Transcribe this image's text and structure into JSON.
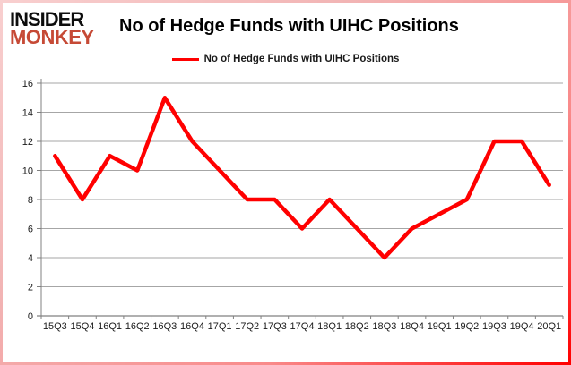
{
  "logo": {
    "line1": "INSIDER",
    "line2": "MONKEY",
    "accent_color": "#c64a36"
  },
  "header": {
    "title": "No of Hedge Funds with UIHC Positions"
  },
  "legend": {
    "label": "No of Hedge Funds with UIHC Positions",
    "marker_color": "#ff0000"
  },
  "chart_data": {
    "type": "line",
    "title": "No of Hedge Funds with UIHC Positions",
    "categories": [
      "15Q3",
      "15Q4",
      "16Q1",
      "16Q2",
      "16Q3",
      "16Q4",
      "17Q1",
      "17Q2",
      "17Q3",
      "17Q4",
      "18Q1",
      "18Q2",
      "18Q3",
      "18Q4",
      "19Q1",
      "19Q2",
      "19Q3",
      "19Q4",
      "20Q1"
    ],
    "series": [
      {
        "name": "No of Hedge Funds with UIHC Positions",
        "color": "#ff0000",
        "values": [
          11,
          8,
          11,
          10,
          15,
          12,
          10,
          8,
          8,
          6,
          8,
          6,
          4,
          6,
          7,
          8,
          12,
          12,
          9
        ]
      }
    ],
    "xlabel": "",
    "ylabel": "",
    "ylim": [
      0,
      16
    ],
    "ytick_step": 2,
    "grid": "horizontal",
    "legend_position": "top",
    "colors": {
      "gridline": "#a6a6a6",
      "axis": "#808080",
      "tick_label": "#1a1a1a"
    }
  }
}
